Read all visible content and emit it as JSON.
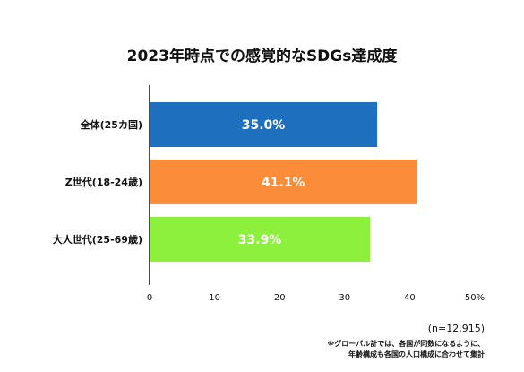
{
  "chart_data": {
    "type": "bar",
    "orientation": "horizontal",
    "title": "2023年時点での感覚的なSDGs達成度",
    "categories": [
      "全体(25カ国)",
      "Z世代(18-24歳)",
      "大人世代(25-69歳)"
    ],
    "values": [
      35.0,
      41.1,
      33.9
    ],
    "value_labels": [
      "35.0%",
      "41.1%",
      "33.9%"
    ],
    "colors": [
      "#1f6fbf",
      "#fb8c3a",
      "#8cf03c"
    ],
    "xlim": [
      0,
      50
    ],
    "ticks": [
      0,
      10,
      20,
      30,
      40,
      50
    ],
    "tick_labels": [
      "0",
      "10",
      "20",
      "30",
      "40",
      "50%"
    ],
    "grid": false,
    "xlabel": "",
    "ylabel": ""
  },
  "notes": {
    "sample": "(n=12,915)",
    "footnote_line1": "※グローバル計では、各国が同数になるように、",
    "footnote_line2": "年齢構成も各国の人口構成に合わせて集計"
  }
}
